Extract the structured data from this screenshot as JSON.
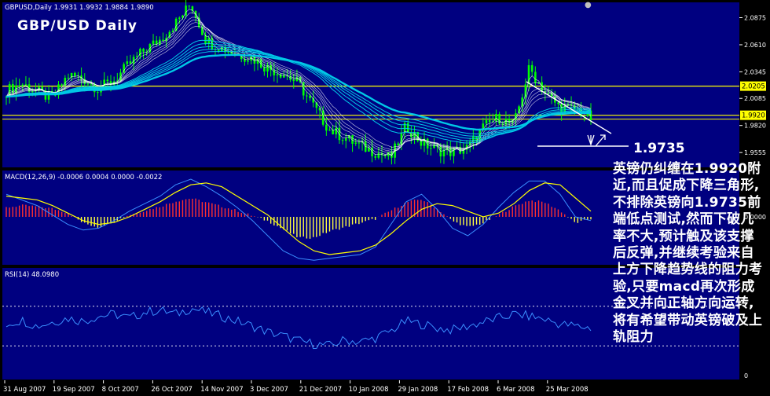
{
  "window": {
    "header": "GBPUSD,Daily  1.9931 1.9932 1.9884 1.9890",
    "chart_title": "GBP/USD Daily",
    "close_glyph": "●"
  },
  "colors": {
    "panel_bg": "#000080",
    "grid": "#ffffff",
    "candle": "#00ff00",
    "ema_short": "#ffffff",
    "ema_long": "#00c8e6",
    "hline": "#ffff00",
    "macd_pos": "#ff3030",
    "macd_neg": "#ffff40",
    "signal": "#ffff00",
    "rsi": "#3a8fff",
    "trendline": "#ffffff",
    "annotation": "#ffffff"
  },
  "chart_data": [
    {
      "type": "line",
      "name": "price",
      "description_label": "GBPUSD,Daily",
      "ohlc_last": {
        "open": 1.9931,
        "high": 1.9932,
        "low": 1.9884,
        "close": 1.989
      },
      "y_ticks": [
        "2.0875",
        "2.0610",
        "2.0345",
        "2.0085",
        "1.9820",
        "1.9555"
      ],
      "ylim": [
        1.941,
        2.1025
      ],
      "hlines": [
        {
          "value": 2.0205,
          "label": "2.0205"
        },
        {
          "value": 1.992,
          "label": "1.9920"
        }
      ],
      "support_label": "1.9735",
      "x_labels": [
        "31 Aug 2007",
        "19 Sep 2007",
        "8 Oct 2007",
        "26 Oct 2007",
        "14 Nov 2007",
        "3 Dec 2007",
        "21 Dec 2007",
        "10 Jan 2008",
        "29 Jan 2008",
        "17 Feb 2008",
        "6 Mar 2008",
        "25 Mar 2008"
      ],
      "close_series": [
        2.016,
        2.023,
        2.015,
        2.008,
        2.031,
        2.028,
        2.018,
        2.026,
        2.042,
        2.056,
        2.066,
        2.082,
        2.101,
        2.065,
        2.058,
        2.052,
        2.048,
        2.038,
        2.033,
        2.023,
        2.0,
        1.978,
        1.97,
        1.962,
        1.956,
        1.95,
        1.982,
        1.965,
        1.958,
        1.956,
        1.96,
        1.98,
        1.99,
        1.982,
        2.038,
        2.015,
        1.999,
        1.998,
        1.989
      ]
    },
    {
      "type": "bar",
      "name": "MACD",
      "label": "MACD(12,26,9) -0.0006 0.0004 0.0000 -0.0022",
      "y_ticks": [
        "0.0000"
      ],
      "histogram": [
        0.45,
        0.55,
        0.5,
        0.4,
        0.2,
        -0.3,
        -0.5,
        -0.2,
        0.1,
        0.3,
        0.5,
        0.75,
        0.9,
        0.7,
        0.5,
        0.3,
        0.05,
        -0.2,
        -0.6,
        -1.0,
        -1.0,
        -0.7,
        -0.5,
        -0.3,
        -0.1,
        0.3,
        0.7,
        0.85,
        0.4,
        -0.2,
        -0.5,
        -0.3,
        0.1,
        0.5,
        0.8,
        0.7,
        0.3,
        -0.3,
        -0.1
      ],
      "signal": [
        0.55,
        0.5,
        0.45,
        0.3,
        0.1,
        -0.1,
        -0.2,
        -0.15,
        0.0,
        0.2,
        0.4,
        0.65,
        0.85,
        0.9,
        0.8,
        0.55,
        0.3,
        0.05,
        -0.3,
        -0.65,
        -0.9,
        -1.0,
        -0.95,
        -0.9,
        -0.75,
        -0.45,
        -0.1,
        0.2,
        0.35,
        0.3,
        0.15,
        0.0,
        0.1,
        0.35,
        0.7,
        0.9,
        0.85,
        0.5,
        0.15
      ],
      "macd": [
        0.6,
        0.45,
        0.3,
        0.05,
        -0.2,
        -0.35,
        -0.3,
        -0.1,
        0.15,
        0.35,
        0.55,
        0.85,
        1.0,
        0.8,
        0.55,
        0.25,
        -0.1,
        -0.5,
        -0.9,
        -1.1,
        -1.15,
        -1.1,
        -1.05,
        -1.0,
        -0.8,
        -0.2,
        0.4,
        0.6,
        0.2,
        -0.3,
        -0.5,
        -0.2,
        0.25,
        0.65,
        0.95,
        0.95,
        0.6,
        0.0,
        -0.1
      ]
    },
    {
      "type": "line",
      "name": "RSI",
      "label": "RSI(14) 48.0980",
      "y_ticks": [
        "0"
      ],
      "ylim": [
        0,
        100
      ],
      "values": [
        52,
        56,
        50,
        54,
        58,
        55,
        60,
        62,
        58,
        64,
        66,
        62,
        68,
        64,
        60,
        55,
        50,
        44,
        40,
        35,
        32,
        30,
        36,
        34,
        38,
        45,
        55,
        52,
        48,
        46,
        50,
        54,
        58,
        62,
        60,
        57,
        52,
        50,
        48
      ]
    }
  ],
  "commentary": "英镑仍纠缠在1.9920附近,而且促成下降三角形,不排除英镑向1.9735前端低点测试,然而下破几率不大,预计触及该支撑后反弹,并继续考验来自上方下降趋势线的阻力考验,只要macd再次形成金叉并向正轴方向运转,将有希望带动英镑破及上轨阻力"
}
